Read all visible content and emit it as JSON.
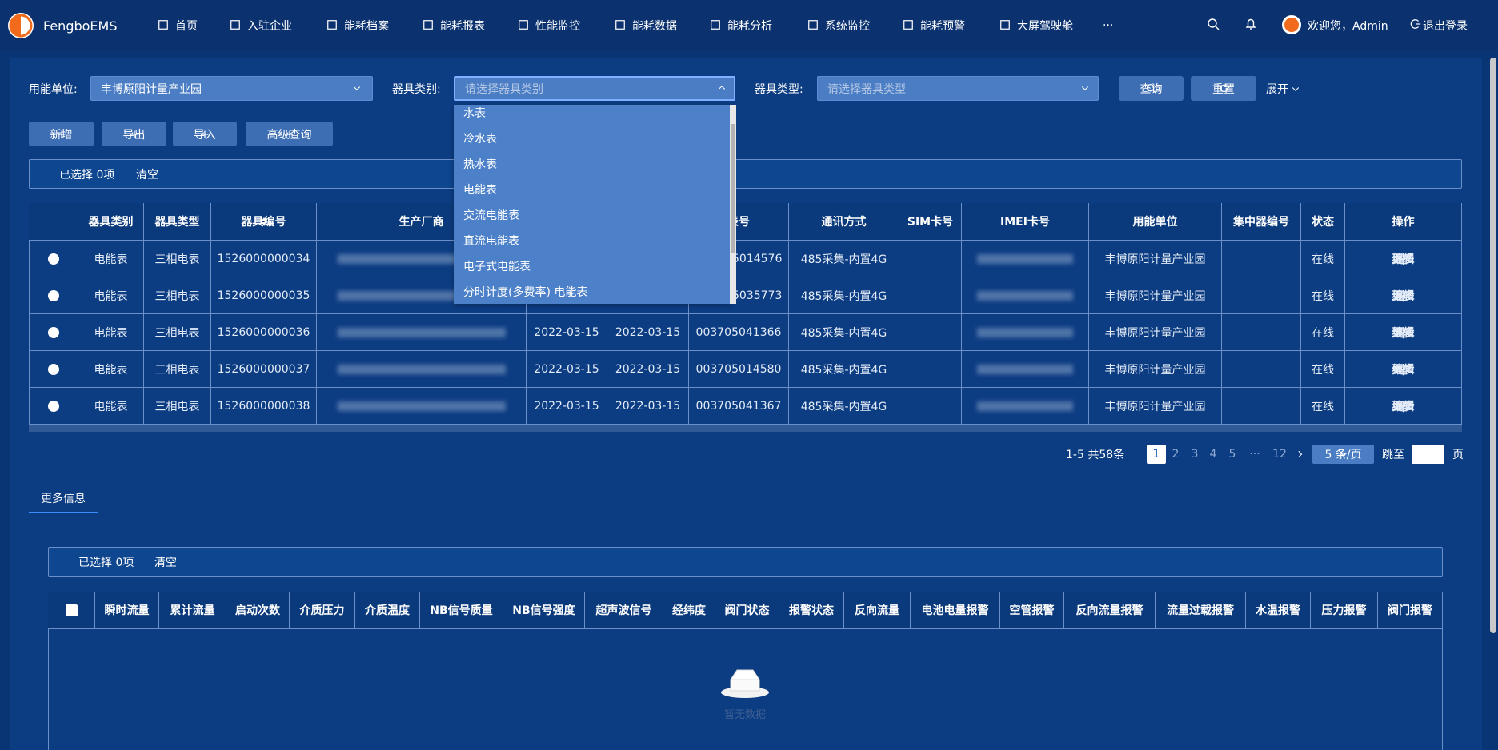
{
  "nav": {
    "brand": "FengboEMS",
    "items": [
      "首页",
      "入驻企业",
      "能耗档案",
      "能耗报表",
      "性能监控",
      "能耗数据",
      "能耗分析",
      "系统监控",
      "能耗预警",
      "大屏驾驶舱"
    ],
    "more": "···",
    "user": "欢迎您，Admin",
    "logout": "退出登录"
  },
  "filters": {
    "unit_label": "用能单位:",
    "unit_value": "丰博原阳计量产业园",
    "category_label": "器具类别:",
    "category_placeholder": "请选择器具类别",
    "type_label": "器具类型:",
    "type_placeholder": "请选择器具类型",
    "search": "查询",
    "reset": "重置",
    "expand": "展开"
  },
  "category_options": [
    "水表",
    "冷水表",
    "热水表",
    "电能表",
    "交流电能表",
    "直流电能表",
    "电子式电能表",
    "分时计度(多费率) 电能表"
  ],
  "toolbar": [
    "新增",
    "导出",
    "导入",
    "高级查询"
  ],
  "selection": {
    "selected": "已选择 0项",
    "clear": "清空"
  },
  "table": {
    "headers": [
      "器具类别",
      "器具类型",
      "器具编号",
      "生产厂商",
      "表号",
      "通讯方式",
      "SIM卡号",
      "IMEI卡号",
      "用能单位",
      "集中器编号",
      "状态",
      "操作"
    ],
    "action_separator": "|",
    "rows": [
      {
        "category": "电能表",
        "type": "三相电表",
        "number": "1526000000034",
        "meter_no": "5014576",
        "comm": "485采集-内置4G",
        "unit": "丰博原阳计量产业园",
        "status": "在线",
        "edit": "编辑",
        "more": "更多"
      },
      {
        "category": "电能表",
        "type": "三相电表",
        "number": "1526000000035",
        "meter_no": "5035773",
        "comm": "485采集-内置4G",
        "unit": "丰博原阳计量产业园",
        "status": "在线",
        "edit": "编辑",
        "more": "更多"
      },
      {
        "category": "电能表",
        "type": "三相电表",
        "number": "1526000000036",
        "date1": "2022-03-15",
        "date2": "2022-03-15",
        "meter_no": "003705041366",
        "comm": "485采集-内置4G",
        "unit": "丰博原阳计量产业园",
        "status": "在线",
        "edit": "编辑",
        "more": "更多"
      },
      {
        "category": "电能表",
        "type": "三相电表",
        "number": "1526000000037",
        "date1": "2022-03-15",
        "date2": "2022-03-15",
        "meter_no": "003705014580",
        "comm": "485采集-内置4G",
        "unit": "丰博原阳计量产业园",
        "status": "在线",
        "edit": "编辑",
        "more": "更多"
      },
      {
        "category": "电能表",
        "type": "三相电表",
        "number": "1526000000038",
        "date1": "2022-03-15",
        "date2": "2022-03-15",
        "meter_no": "003705041367",
        "comm": "485采集-内置4G",
        "unit": "丰博原阳计量产业园",
        "status": "在线",
        "edit": "编辑",
        "more": "更多"
      }
    ]
  },
  "pagination": {
    "summary": "1-5 共58条",
    "pages": [
      1,
      2,
      3,
      4,
      5,
      12
    ],
    "ellipsis": "···",
    "current": 1,
    "page_size": "5 条/页",
    "goto": "跳至",
    "page": "页"
  },
  "tab": "更多信息",
  "detail_selection": {
    "selected": "已选择 0项",
    "clear": "清空"
  },
  "detail_table": {
    "headers": [
      "瞬时流量",
      "累计流量",
      "启动次数",
      "介质压力",
      "介质温度",
      "NB信号质量",
      "NB信号强度",
      "超声波信号",
      "经纬度",
      "阀门状态",
      "报警状态",
      "反向流量",
      "电池电量报警",
      "空管报警",
      "反向流量报警",
      "流量过载报警",
      "水温报警",
      "压力报警",
      "阀门报警"
    ],
    "empty": "暂无数据"
  }
}
